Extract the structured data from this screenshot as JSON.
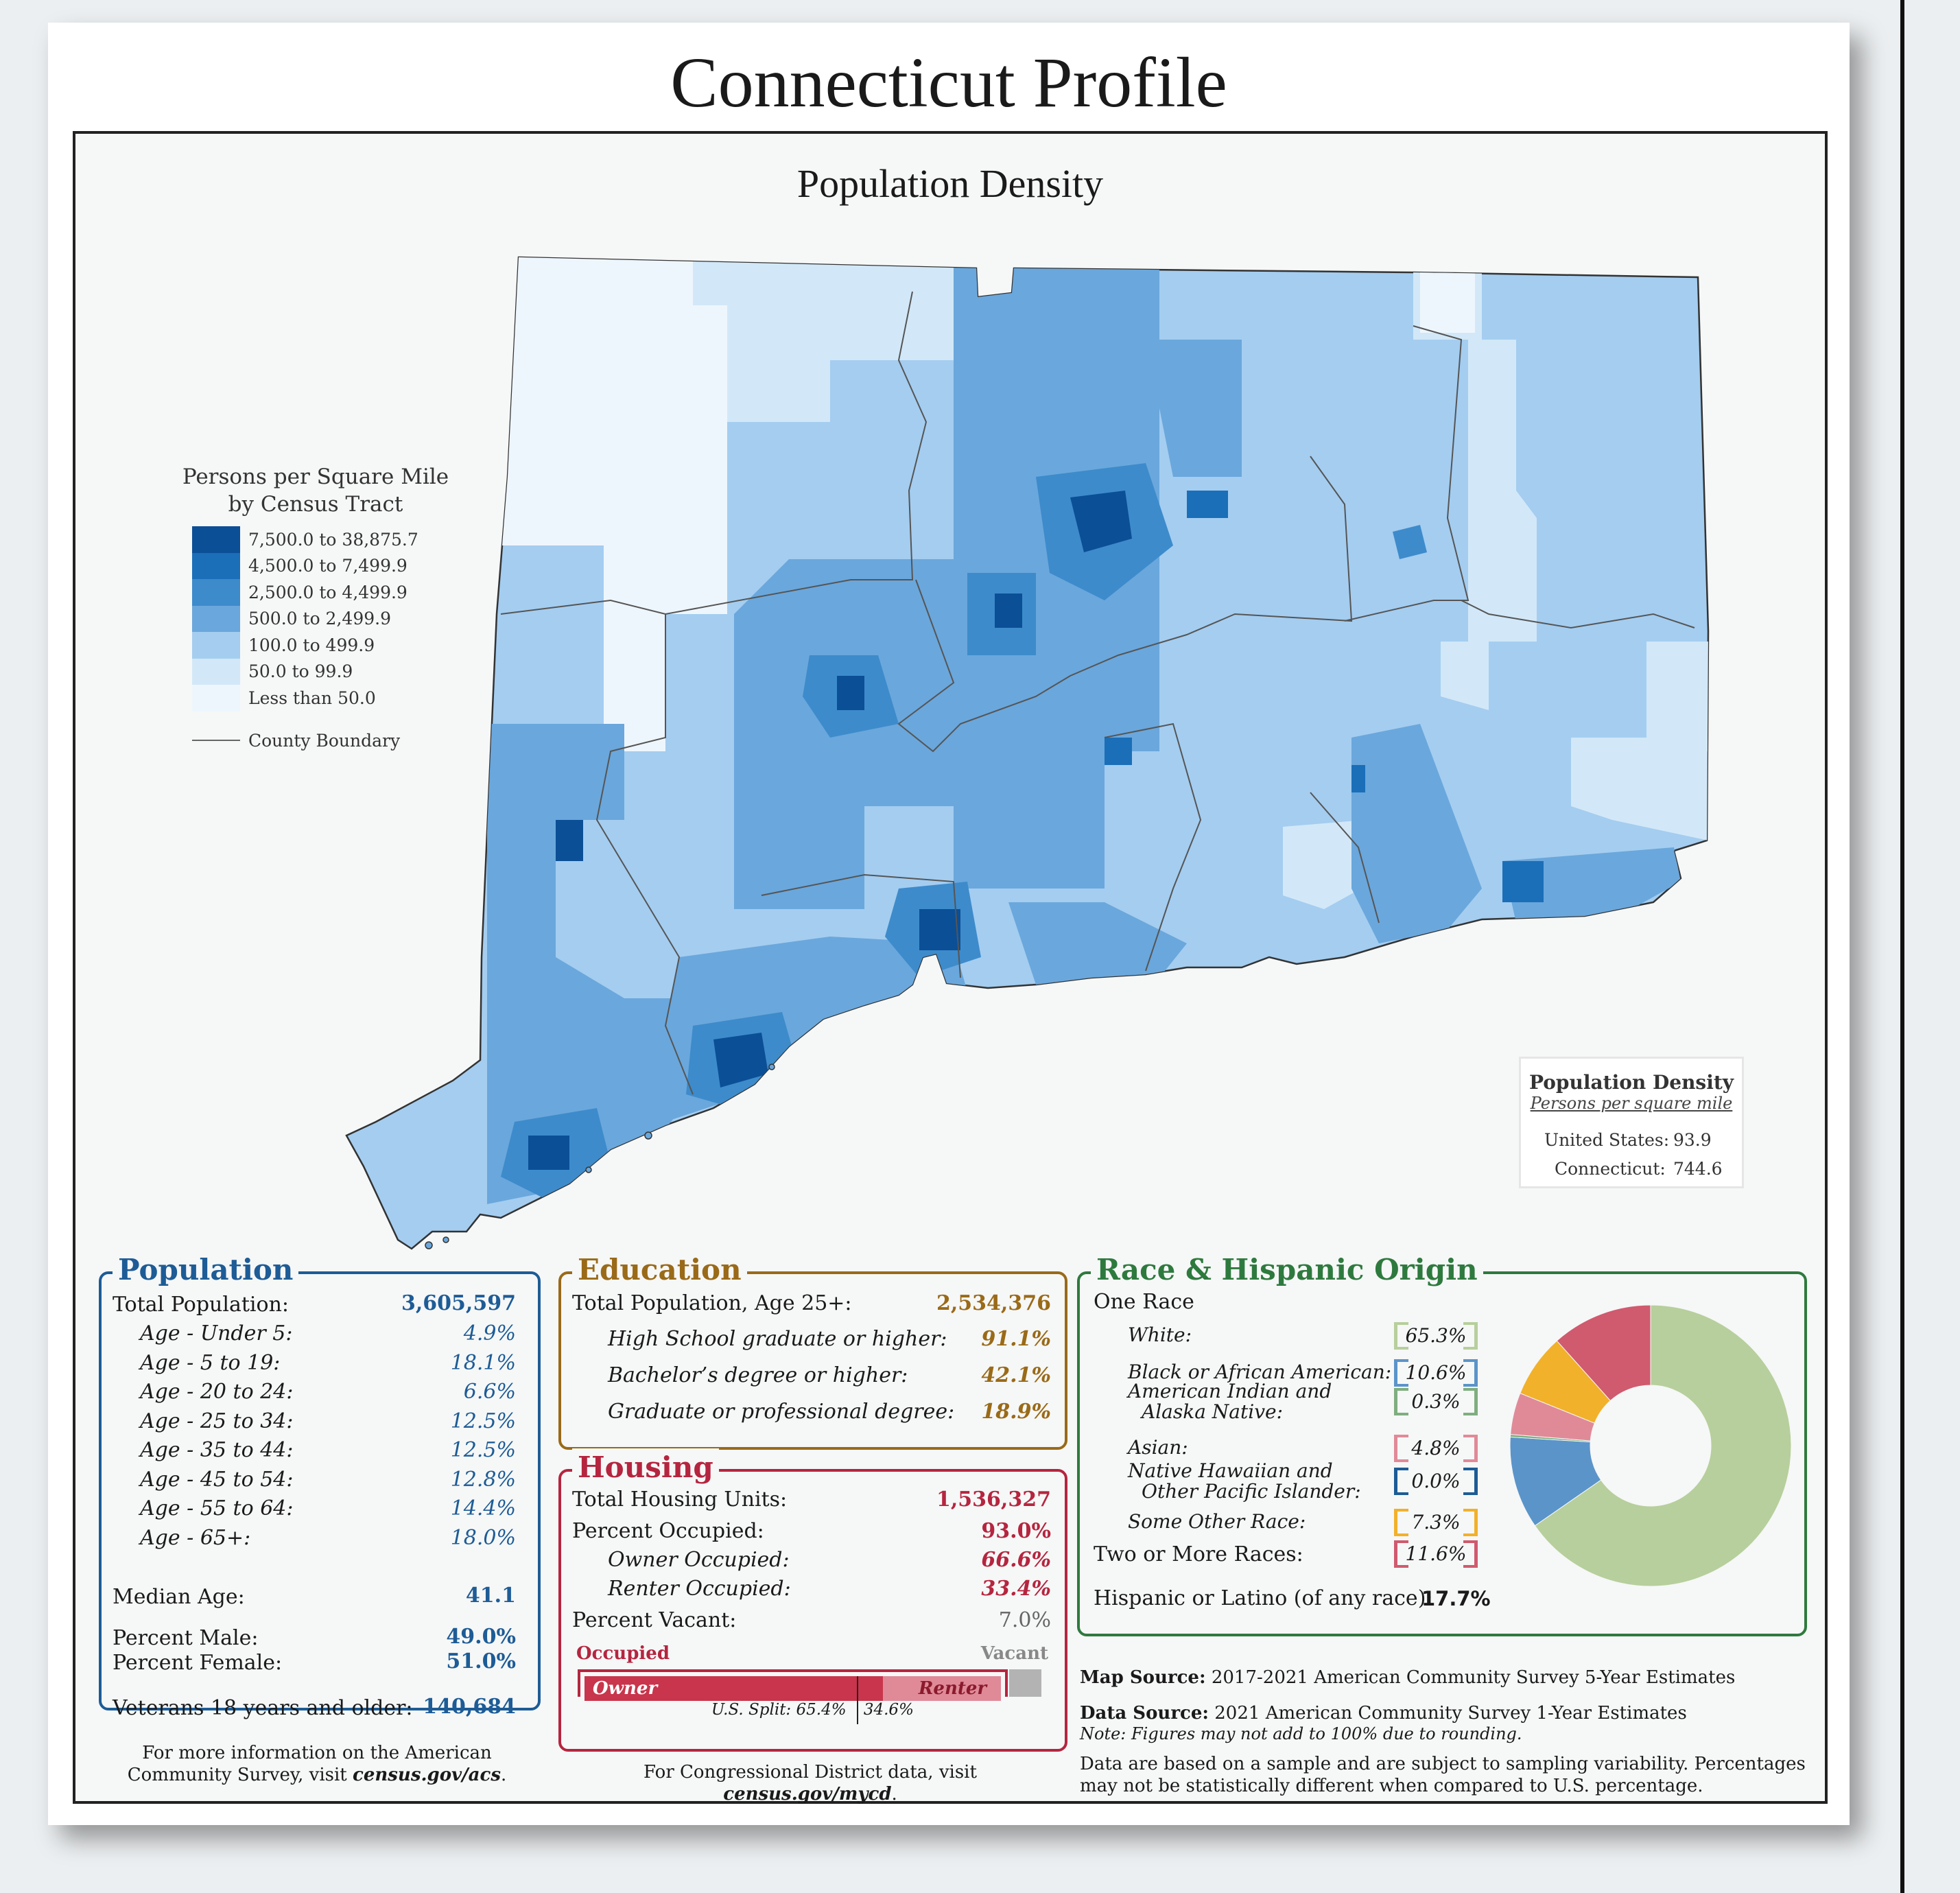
{
  "title": "Connecticut Profile",
  "map": {
    "title": "Population Density",
    "legend": {
      "title_line1": "Persons per Square Mile",
      "title_line2": "by Census Tract",
      "classes": [
        {
          "label": "7,500.0 to 38,875.7",
          "color": "#0b4f96"
        },
        {
          "label": "4,500.0 to 7,499.9",
          "color": "#1a6fb8"
        },
        {
          "label": "2,500.0 to 4,499.9",
          "color": "#3d8bcb"
        },
        {
          "label": "500.0 to 2,499.9",
          "color": "#6aa7dc"
        },
        {
          "label": "100.0 to 499.9",
          "color": "#a4cdf0"
        },
        {
          "label": "50.0 to 99.9",
          "color": "#d2e8f8"
        },
        {
          "label": "Less than 50.0",
          "color": "#eef6fd"
        }
      ],
      "boundary_label": "County Boundary"
    },
    "density_box": {
      "title": "Population Density",
      "subtitle": "Persons per square mile",
      "us_label": "United States:",
      "us_value": "93.9",
      "ct_label": "Connecticut:",
      "ct_value": "744.6"
    }
  },
  "population": {
    "title": "Population",
    "total_label": "Total Population:",
    "total_value": "3,605,597",
    "ages": [
      {
        "label": "Age - Under 5:",
        "value": "4.9%"
      },
      {
        "label": "Age - 5 to 19:",
        "value": "18.1%"
      },
      {
        "label": "Age - 20 to 24:",
        "value": "6.6%"
      },
      {
        "label": "Age - 25 to 34:",
        "value": "12.5%"
      },
      {
        "label": "Age - 35 to 44:",
        "value": "12.5%"
      },
      {
        "label": "Age - 45 to 54:",
        "value": "12.8%"
      },
      {
        "label": "Age - 55 to 64:",
        "value": "14.4%"
      },
      {
        "label": "Age - 65+:",
        "value": "18.0%"
      }
    ],
    "median_label": "Median Age:",
    "median_value": "41.1",
    "male_label": "Percent Male:",
    "male_value": "49.0%",
    "female_label": "Percent Female:",
    "female_value": "51.0%",
    "veterans_label": "Veterans 18 years and older:",
    "veterans_value": "140,684",
    "footnote_line1": "For more information on the American",
    "footnote_line2_a": "Community Survey, visit ",
    "footnote_line2_b": "census.gov/acs",
    "footnote_line2_c": "."
  },
  "education": {
    "title": "Education",
    "total_label": "Total Population, Age 25+:",
    "total_value": "2,534,376",
    "rows": [
      {
        "label": "High School  graduate or higher:",
        "value": "91.1%"
      },
      {
        "label": "Bachelor’s degree or higher:",
        "value": "42.1%"
      },
      {
        "label": "Graduate or professional degree:",
        "value": "18.9%"
      }
    ]
  },
  "housing": {
    "title": "Housing",
    "units_label": "Total Housing Units:",
    "units_value": "1,536,327",
    "occupied_label": "Percent Occupied:",
    "occupied_value": "93.0%",
    "owner_label": "Owner Occupied:",
    "owner_value": "66.6%",
    "renter_label": "Renter Occupied:",
    "renter_value": "33.4%",
    "vacant_label": "Percent Vacant:",
    "vacant_value": "7.0%",
    "bar": {
      "occupied_label": "Occupied",
      "vacant_label": "Vacant",
      "owner_label": "Owner",
      "renter_label": "Renter",
      "occupied_fraction": 0.93,
      "owner_fraction": 0.666,
      "us_split_label": "U.S. Split: 65.4%",
      "us_split_renter": "34.6%",
      "us_owner_fraction": 0.654
    },
    "footnote_a": "For Congressional District data, visit ",
    "footnote_b": "census.gov/mycd",
    "footnote_c": "."
  },
  "race": {
    "title": "Race & Hispanic Origin",
    "one_race_label": "One Race",
    "items": [
      {
        "label": "White:",
        "value": "65.3%",
        "color": "#b7cf9c"
      },
      {
        "label": "Black or African American:",
        "value": "10.6%",
        "color": "#5b94c9"
      },
      {
        "label": "American Indian and",
        "label2": "Alaska Native:",
        "value": "0.3%",
        "color": "#7fae7f"
      },
      {
        "label": "Asian:",
        "value": "4.8%",
        "color": "#e08a98"
      },
      {
        "label": "Native Hawaiian and",
        "label2": "Other Pacific Islander:",
        "value": "0.0%",
        "color": "#1d5c96"
      },
      {
        "label": "Some Other Race:",
        "value": "7.3%",
        "color": "#f2b12a"
      }
    ],
    "two_more_label": "Two or More Races:",
    "two_more_value": "11.6%",
    "two_more_color": "#d05a6e",
    "hispanic_label": "Hispanic or Latino (of any race):",
    "hispanic_value": "17.7%"
  },
  "chart_data": {
    "type": "pie",
    "categories": [
      "White",
      "Black or African American",
      "American Indian and Alaska Native",
      "Asian",
      "Native Hawaiian and Other Pacific Islander",
      "Some Other Race",
      "Two or More Races"
    ],
    "values": [
      65.3,
      10.6,
      0.3,
      4.8,
      0.0,
      7.3,
      11.6
    ]
  },
  "sources": {
    "map_label": "Map Source:",
    "map_text": " 2017-2021 American Community Survey 5-Year Estimates",
    "data_label": "Data Source:",
    "data_text": " 2021 American Community Survey 1-Year Estimates",
    "note": "Note: Figures may not add to 100% due to rounding.",
    "disclaimer_line1": "Data are based on a sample and are subject to sampling variability. Percentages",
    "disclaimer_line2": "may not be statistically different when compared to U.S. percentage."
  }
}
